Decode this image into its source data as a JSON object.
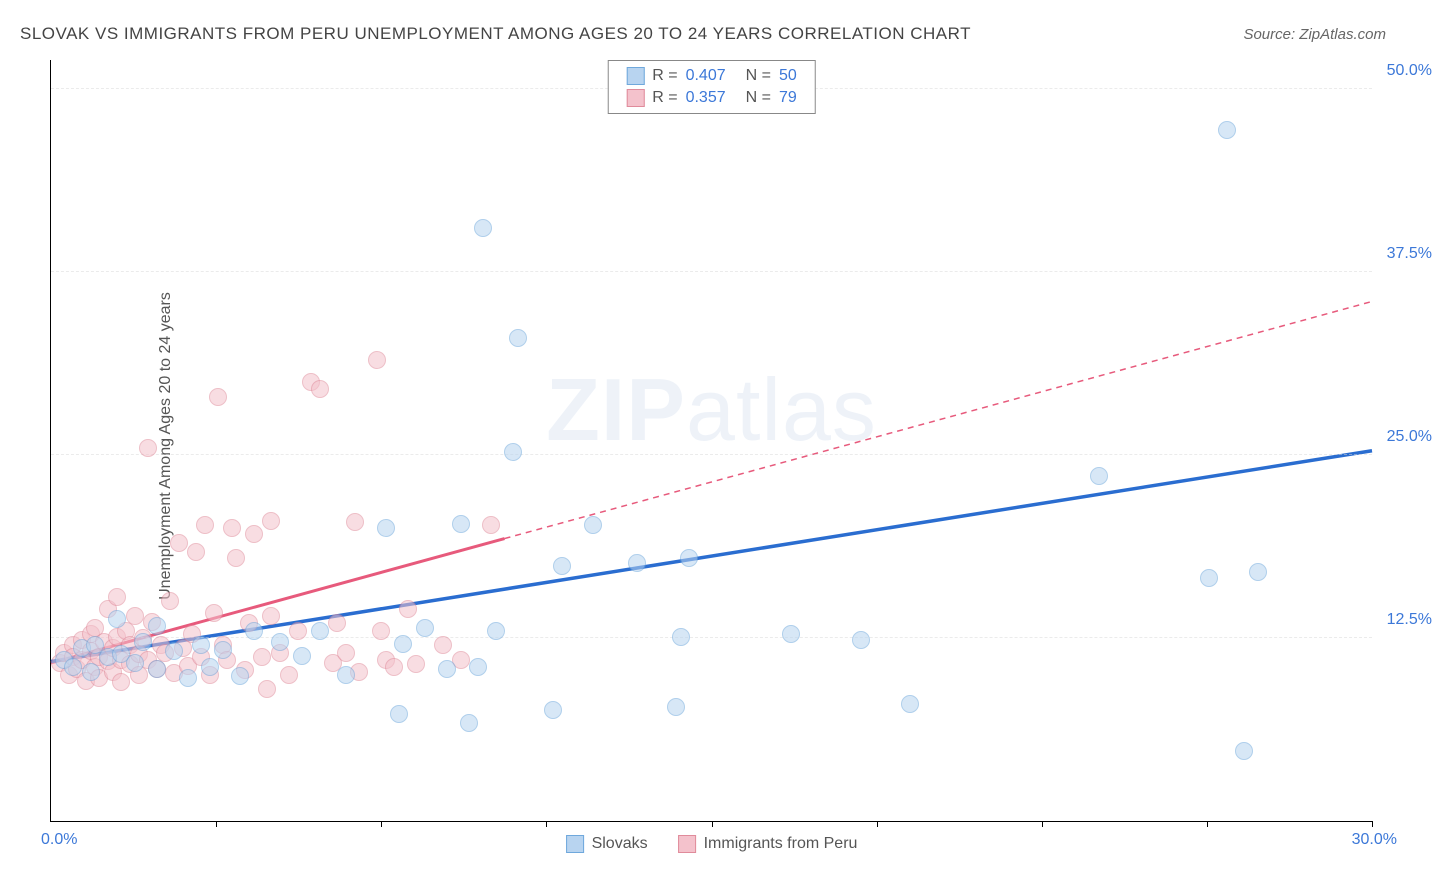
{
  "chart": {
    "title": "SLOVAK VS IMMIGRANTS FROM PERU UNEMPLOYMENT AMONG AGES 20 TO 24 YEARS CORRELATION CHART",
    "title_color": "#444444",
    "source_label": "Source: ZipAtlas.com",
    "source_color": "#666666",
    "y_axis_label": "Unemployment Among Ages 20 to 24 years",
    "y_axis_label_color": "#555555",
    "x_origin": "0.0%",
    "x_end": "30.0%",
    "xlim": [
      0,
      30
    ],
    "ylim": [
      0,
      52
    ],
    "y_ticks": [
      {
        "v": 12.5,
        "label": "12.5%"
      },
      {
        "v": 25.0,
        "label": "25.0%"
      },
      {
        "v": 37.5,
        "label": "37.5%"
      },
      {
        "v": 50.0,
        "label": "50.0%"
      }
    ],
    "x_tick_positions": [
      3.75,
      7.5,
      11.25,
      15,
      18.75,
      22.5,
      26.25,
      30
    ],
    "grid_color": "#d8d8d8",
    "tick_label_color": "#3c78d8",
    "origin_label_color": "#3c78d8",
    "marker_radius": 9,
    "series_a": {
      "name": "Slovaks",
      "r_label": "R =",
      "r_value": "0.407",
      "n_label": "N =",
      "n_value": "50",
      "fill": "#b8d4f0",
      "stroke": "#6fa8dc",
      "line_color": "#2a6dd0",
      "trend_start": {
        "x": 0,
        "y": 10.9
      },
      "trend_solid_end": {
        "x": 30,
        "y": 25.3
      },
      "trend_dash_end": {
        "x": 30,
        "y": 25.3
      },
      "points": [
        {
          "x": 0.3,
          "y": 11.0
        },
        {
          "x": 0.5,
          "y": 10.5
        },
        {
          "x": 0.7,
          "y": 11.8
        },
        {
          "x": 0.9,
          "y": 10.2
        },
        {
          "x": 1.0,
          "y": 12.0
        },
        {
          "x": 1.3,
          "y": 11.2
        },
        {
          "x": 1.5,
          "y": 13.8
        },
        {
          "x": 1.6,
          "y": 11.4
        },
        {
          "x": 1.9,
          "y": 10.8
        },
        {
          "x": 2.1,
          "y": 12.2
        },
        {
          "x": 2.4,
          "y": 10.4
        },
        {
          "x": 2.4,
          "y": 13.3
        },
        {
          "x": 2.8,
          "y": 11.6
        },
        {
          "x": 3.1,
          "y": 9.8
        },
        {
          "x": 3.4,
          "y": 12.0
        },
        {
          "x": 3.6,
          "y": 10.5
        },
        {
          "x": 3.9,
          "y": 11.7
        },
        {
          "x": 4.3,
          "y": 9.9
        },
        {
          "x": 4.6,
          "y": 13.0
        },
        {
          "x": 5.2,
          "y": 12.2
        },
        {
          "x": 5.7,
          "y": 11.3
        },
        {
          "x": 6.1,
          "y": 13.0
        },
        {
          "x": 6.7,
          "y": 10.0
        },
        {
          "x": 7.6,
          "y": 20.0
        },
        {
          "x": 7.9,
          "y": 7.3
        },
        {
          "x": 8.0,
          "y": 12.1
        },
        {
          "x": 8.5,
          "y": 13.2
        },
        {
          "x": 9.0,
          "y": 10.4
        },
        {
          "x": 9.3,
          "y": 20.3
        },
        {
          "x": 9.5,
          "y": 6.7
        },
        {
          "x": 9.7,
          "y": 10.5
        },
        {
          "x": 9.8,
          "y": 40.5
        },
        {
          "x": 10.1,
          "y": 13.0
        },
        {
          "x": 10.5,
          "y": 25.2
        },
        {
          "x": 10.6,
          "y": 33.0
        },
        {
          "x": 11.4,
          "y": 7.6
        },
        {
          "x": 11.6,
          "y": 17.4
        },
        {
          "x": 12.3,
          "y": 20.2
        },
        {
          "x": 13.3,
          "y": 17.6
        },
        {
          "x": 14.2,
          "y": 7.8
        },
        {
          "x": 14.3,
          "y": 12.6
        },
        {
          "x": 14.5,
          "y": 18.0
        },
        {
          "x": 16.8,
          "y": 12.8
        },
        {
          "x": 18.4,
          "y": 12.4
        },
        {
          "x": 19.5,
          "y": 8.0
        },
        {
          "x": 23.8,
          "y": 23.6
        },
        {
          "x": 26.3,
          "y": 16.6
        },
        {
          "x": 26.7,
          "y": 47.2
        },
        {
          "x": 27.1,
          "y": 4.8
        },
        {
          "x": 27.4,
          "y": 17.0
        }
      ]
    },
    "series_b": {
      "name": "Immigrants from Peru",
      "r_label": "R =",
      "r_value": "0.357",
      "n_label": "N =",
      "n_value": "79",
      "fill": "#f4c2cc",
      "stroke": "#e08b9b",
      "line_color": "#e75a7c",
      "trend_start": {
        "x": 0,
        "y": 10.8
      },
      "trend_solid_end": {
        "x": 10.3,
        "y": 19.3
      },
      "trend_dash_end": {
        "x": 30,
        "y": 35.5
      },
      "points": [
        {
          "x": 0.2,
          "y": 10.8
        },
        {
          "x": 0.3,
          "y": 11.5
        },
        {
          "x": 0.4,
          "y": 10.0
        },
        {
          "x": 0.5,
          "y": 12.0
        },
        {
          "x": 0.5,
          "y": 11.2
        },
        {
          "x": 0.6,
          "y": 10.4
        },
        {
          "x": 0.7,
          "y": 12.4
        },
        {
          "x": 0.7,
          "y": 11.0
        },
        {
          "x": 0.8,
          "y": 9.6
        },
        {
          "x": 0.9,
          "y": 12.8
        },
        {
          "x": 0.9,
          "y": 11.6
        },
        {
          "x": 1.0,
          "y": 10.5
        },
        {
          "x": 1.0,
          "y": 13.2
        },
        {
          "x": 1.1,
          "y": 11.2
        },
        {
          "x": 1.1,
          "y": 9.8
        },
        {
          "x": 1.2,
          "y": 12.2
        },
        {
          "x": 1.3,
          "y": 10.9
        },
        {
          "x": 1.3,
          "y": 14.5
        },
        {
          "x": 1.4,
          "y": 11.8
        },
        {
          "x": 1.4,
          "y": 10.2
        },
        {
          "x": 1.5,
          "y": 12.6
        },
        {
          "x": 1.5,
          "y": 15.3
        },
        {
          "x": 1.6,
          "y": 11.0
        },
        {
          "x": 1.6,
          "y": 9.5
        },
        {
          "x": 1.7,
          "y": 13.0
        },
        {
          "x": 1.8,
          "y": 10.7
        },
        {
          "x": 1.8,
          "y": 12.0
        },
        {
          "x": 1.9,
          "y": 14.0
        },
        {
          "x": 2.0,
          "y": 11.4
        },
        {
          "x": 2.0,
          "y": 10.0
        },
        {
          "x": 2.1,
          "y": 12.5
        },
        {
          "x": 2.2,
          "y": 11.0
        },
        {
          "x": 2.2,
          "y": 25.5
        },
        {
          "x": 2.3,
          "y": 13.6
        },
        {
          "x": 2.4,
          "y": 10.4
        },
        {
          "x": 2.5,
          "y": 12.0
        },
        {
          "x": 2.6,
          "y": 11.5
        },
        {
          "x": 2.7,
          "y": 15.0
        },
        {
          "x": 2.8,
          "y": 10.1
        },
        {
          "x": 2.9,
          "y": 19.0
        },
        {
          "x": 3.0,
          "y": 11.8
        },
        {
          "x": 3.1,
          "y": 10.6
        },
        {
          "x": 3.2,
          "y": 12.8
        },
        {
          "x": 3.3,
          "y": 18.4
        },
        {
          "x": 3.4,
          "y": 11.2
        },
        {
          "x": 3.5,
          "y": 20.2
        },
        {
          "x": 3.6,
          "y": 10.0
        },
        {
          "x": 3.7,
          "y": 14.2
        },
        {
          "x": 3.8,
          "y": 29.0
        },
        {
          "x": 3.9,
          "y": 12.0
        },
        {
          "x": 4.0,
          "y": 11.0
        },
        {
          "x": 4.1,
          "y": 20.0
        },
        {
          "x": 4.2,
          "y": 18.0
        },
        {
          "x": 4.4,
          "y": 10.3
        },
        {
          "x": 4.5,
          "y": 13.5
        },
        {
          "x": 4.6,
          "y": 19.6
        },
        {
          "x": 4.8,
          "y": 11.2
        },
        {
          "x": 4.9,
          "y": 9.0
        },
        {
          "x": 5.0,
          "y": 14.0
        },
        {
          "x": 5.0,
          "y": 20.5
        },
        {
          "x": 5.2,
          "y": 11.5
        },
        {
          "x": 5.4,
          "y": 10.0
        },
        {
          "x": 5.6,
          "y": 13.0
        },
        {
          "x": 5.9,
          "y": 30.0
        },
        {
          "x": 6.1,
          "y": 29.5
        },
        {
          "x": 6.4,
          "y": 10.8
        },
        {
          "x": 6.5,
          "y": 13.5
        },
        {
          "x": 6.7,
          "y": 11.5
        },
        {
          "x": 6.9,
          "y": 20.4
        },
        {
          "x": 7.0,
          "y": 10.2
        },
        {
          "x": 7.4,
          "y": 31.5
        },
        {
          "x": 7.5,
          "y": 13.0
        },
        {
          "x": 7.6,
          "y": 11.0
        },
        {
          "x": 7.8,
          "y": 10.5
        },
        {
          "x": 8.1,
          "y": 14.5
        },
        {
          "x": 8.3,
          "y": 10.7
        },
        {
          "x": 8.9,
          "y": 12.0
        },
        {
          "x": 9.3,
          "y": 11.0
        },
        {
          "x": 10.0,
          "y": 20.2
        }
      ]
    },
    "legend_border_color": "#888888",
    "legend_label_color": "#555555",
    "stat_value_color": "#3c78d8",
    "watermark": "ZIPatlas",
    "watermark_color": "#8aa9d4"
  }
}
